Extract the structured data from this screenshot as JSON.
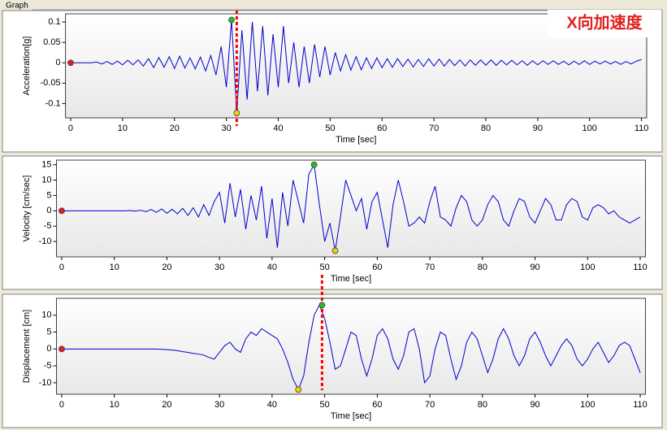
{
  "header": {
    "group": "Graph",
    "label": "X向加速度"
  },
  "chart_data": [
    {
      "type": "line",
      "ylabel": "Acceleration[g]",
      "xlabel": "Time [sec]",
      "xlim": [
        -1,
        111
      ],
      "ylim": [
        -0.135,
        0.12
      ],
      "xticks": [
        0,
        10,
        20,
        30,
        40,
        50,
        60,
        70,
        80,
        90,
        100,
        110
      ],
      "yticks": [
        -0.1,
        -0.05,
        0,
        0.05,
        0.1
      ],
      "x": [
        0,
        1,
        2,
        3,
        4,
        5,
        6,
        7,
        8,
        9,
        10,
        11,
        12,
        13,
        14,
        15,
        16,
        17,
        18,
        19,
        20,
        21,
        22,
        23,
        24,
        25,
        26,
        27,
        28,
        29,
        30,
        31,
        32,
        33,
        34,
        35,
        36,
        37,
        38,
        39,
        40,
        41,
        42,
        43,
        44,
        45,
        46,
        47,
        48,
        49,
        50,
        51,
        52,
        53,
        54,
        55,
        56,
        57,
        58,
        59,
        60,
        61,
        62,
        63,
        64,
        65,
        66,
        67,
        68,
        69,
        70,
        71,
        72,
        73,
        74,
        75,
        76,
        77,
        78,
        79,
        80,
        81,
        82,
        83,
        84,
        85,
        86,
        87,
        88,
        89,
        90,
        91,
        92,
        93,
        94,
        95,
        96,
        97,
        98,
        99,
        100,
        101,
        102,
        103,
        104,
        105,
        106,
        107,
        108,
        109,
        110
      ],
      "series": [
        {
          "color": "#0000cc",
          "values": [
            0,
            0,
            0,
            0,
            0,
            0.002,
            -0.003,
            0.003,
            -0.004,
            0.004,
            -0.005,
            0.006,
            -0.005,
            0.007,
            -0.008,
            0.01,
            -0.012,
            0.013,
            -0.011,
            0.015,
            -0.014,
            0.016,
            -0.013,
            0.012,
            -0.015,
            0.014,
            -0.02,
            0.018,
            -0.03,
            0.04,
            -0.06,
            0.105,
            -0.123,
            0.08,
            -0.09,
            0.1,
            -0.07,
            0.09,
            -0.08,
            0.07,
            -0.06,
            0.09,
            -0.05,
            0.05,
            -0.06,
            0.04,
            -0.05,
            0.045,
            -0.035,
            0.04,
            -0.03,
            0.025,
            -0.02,
            0.02,
            -0.018,
            0.015,
            -0.017,
            0.012,
            -0.014,
            0.012,
            -0.012,
            0.01,
            -0.011,
            0.01,
            -0.009,
            0.009,
            -0.01,
            0.008,
            -0.009,
            0.01,
            -0.008,
            0.009,
            -0.008,
            0.008,
            -0.007,
            0.007,
            -0.008,
            0.007,
            -0.006,
            0.007,
            -0.006,
            0.007,
            -0.006,
            0.006,
            -0.005,
            0.006,
            -0.005,
            0.005,
            -0.006,
            0.005,
            -0.005,
            0.005,
            -0.004,
            0.005,
            -0.004,
            0.004,
            -0.005,
            0.004,
            -0.004,
            0.005,
            -0.004,
            0.004,
            -0.003,
            0.004,
            -0.003,
            0.003,
            -0.004,
            0.003,
            -0.003,
            0.004,
            0.008
          ]
        }
      ],
      "markers": [
        {
          "x": 0,
          "y": 0,
          "color": "#e02020"
        },
        {
          "x": 31,
          "y": 0.105,
          "color": "#20c020"
        },
        {
          "x": 32,
          "y": -0.123,
          "color": "#f0d000"
        }
      ],
      "cursor": {
        "x": 32,
        "color": "#ff0000"
      }
    },
    {
      "type": "line",
      "ylabel": "Velocity [cm/sec]",
      "xlabel": "Time [sec]",
      "xlim": [
        -1,
        111
      ],
      "ylim": [
        -15,
        16.5
      ],
      "xticks": [
        0,
        10,
        20,
        30,
        40,
        50,
        60,
        70,
        80,
        90,
        100,
        110
      ],
      "yticks": [
        -10,
        -5,
        0,
        5,
        10,
        15
      ],
      "x": [
        0,
        1,
        2,
        3,
        4,
        5,
        6,
        7,
        8,
        9,
        10,
        11,
        12,
        13,
        14,
        15,
        16,
        17,
        18,
        19,
        20,
        21,
        22,
        23,
        24,
        25,
        26,
        27,
        28,
        29,
        30,
        31,
        32,
        33,
        34,
        35,
        36,
        37,
        38,
        39,
        40,
        41,
        42,
        43,
        44,
        45,
        46,
        47,
        48,
        49,
        50,
        51,
        52,
        53,
        54,
        55,
        56,
        57,
        58,
        59,
        60,
        61,
        62,
        63,
        64,
        65,
        66,
        67,
        68,
        69,
        70,
        71,
        72,
        73,
        74,
        75,
        76,
        77,
        78,
        79,
        80,
        81,
        82,
        83,
        84,
        85,
        86,
        87,
        88,
        89,
        90,
        91,
        92,
        93,
        94,
        95,
        96,
        97,
        98,
        99,
        100,
        101,
        102,
        103,
        104,
        105,
        106,
        107,
        108,
        109,
        110
      ],
      "series": [
        {
          "color": "#0000cc",
          "values": [
            0,
            0,
            0,
            0,
            0,
            0,
            0,
            0,
            0,
            0,
            0,
            0,
            0,
            0.1,
            -0.1,
            0.2,
            -0.3,
            0.4,
            -0.5,
            0.6,
            -0.8,
            0.5,
            -1,
            0.8,
            -1.5,
            1,
            -2,
            2,
            -1.5,
            3,
            6,
            -4,
            9,
            -2,
            7,
            -6,
            5,
            -3,
            8,
            -9,
            4,
            -12,
            6,
            -5,
            10,
            3,
            -4,
            12,
            15,
            2,
            -10,
            -4,
            -13,
            -2,
            10,
            5,
            0,
            4,
            -6,
            3,
            6,
            -3,
            -12,
            2,
            10,
            3,
            -5,
            -4,
            -2,
            -4,
            3,
            8,
            -2,
            -3,
            -5,
            1,
            5,
            3,
            -3,
            -5,
            -3,
            2,
            5,
            3,
            -3,
            -5,
            0,
            4,
            3,
            -2,
            -4,
            0,
            4,
            2,
            -3,
            -3,
            2,
            4,
            3,
            -2,
            -3,
            1,
            2,
            1,
            -1,
            0,
            -2,
            -3,
            -4,
            -3,
            -2
          ]
        }
      ],
      "markers": [
        {
          "x": 0,
          "y": 0,
          "color": "#e02020"
        },
        {
          "x": 48,
          "y": 15,
          "color": "#20c020"
        },
        {
          "x": 52,
          "y": -13,
          "color": "#f0d000"
        }
      ]
    },
    {
      "type": "line",
      "ylabel": "Displacement [cm]",
      "xlabel": "Time [sec]",
      "xlim": [
        -1,
        111
      ],
      "ylim": [
        -13.4,
        15
      ],
      "xticks": [
        0,
        10,
        20,
        30,
        40,
        50,
        60,
        70,
        80,
        90,
        100,
        110
      ],
      "yticks": [
        -10,
        -5,
        0,
        5,
        10
      ],
      "x": [
        0,
        1,
        2,
        3,
        4,
        5,
        6,
        7,
        8,
        9,
        10,
        11,
        12,
        13,
        14,
        15,
        16,
        17,
        18,
        19,
        20,
        21,
        22,
        23,
        24,
        25,
        26,
        27,
        28,
        29,
        30,
        31,
        32,
        33,
        34,
        35,
        36,
        37,
        38,
        39,
        40,
        41,
        42,
        43,
        44,
        45,
        46,
        47,
        48,
        49,
        50,
        51,
        52,
        53,
        54,
        55,
        56,
        57,
        58,
        59,
        60,
        61,
        62,
        63,
        64,
        65,
        66,
        67,
        68,
        69,
        70,
        71,
        72,
        73,
        74,
        75,
        76,
        77,
        78,
        79,
        80,
        81,
        82,
        83,
        84,
        85,
        86,
        87,
        88,
        89,
        90,
        91,
        92,
        93,
        94,
        95,
        96,
        97,
        98,
        99,
        100,
        101,
        102,
        103,
        104,
        105,
        106,
        107,
        108,
        109,
        110
      ],
      "series": [
        {
          "color": "#0000cc",
          "values": [
            0,
            0,
            0,
            0,
            0,
            0,
            0,
            0,
            0,
            0,
            0,
            0,
            0,
            0,
            0,
            0,
            0,
            0,
            0,
            -0.1,
            -0.2,
            -0.3,
            -0.5,
            -0.8,
            -1,
            -1.3,
            -1.5,
            -1.8,
            -2.5,
            -3,
            -1,
            1,
            2,
            0,
            -1,
            3,
            5,
            4,
            6,
            5,
            4,
            3,
            0,
            -4,
            -9,
            -12,
            -8,
            2,
            10,
            13,
            9,
            2,
            -6,
            -5,
            0,
            5,
            4,
            -3,
            -8,
            -3,
            4,
            6,
            3,
            -3,
            -6,
            -2,
            5,
            6,
            0,
            -10,
            -8,
            0,
            5,
            4,
            -3,
            -9,
            -5,
            2,
            5,
            3,
            -2,
            -7,
            -3,
            3,
            6,
            3,
            -2,
            -5,
            -2,
            3,
            5,
            2,
            -2,
            -5,
            -2,
            1,
            3,
            1,
            -3,
            -5,
            -3,
            0,
            2,
            -1,
            -4,
            -2,
            1,
            2,
            1,
            -3,
            -7
          ]
        }
      ],
      "markers": [
        {
          "x": 0,
          "y": 0,
          "color": "#e02020"
        },
        {
          "x": 49.5,
          "y": 13,
          "color": "#20c020"
        },
        {
          "x": 45,
          "y": -12,
          "color": "#f0d000"
        }
      ],
      "cursor": {
        "x": 49.5,
        "color": "#ff0000"
      }
    }
  ]
}
